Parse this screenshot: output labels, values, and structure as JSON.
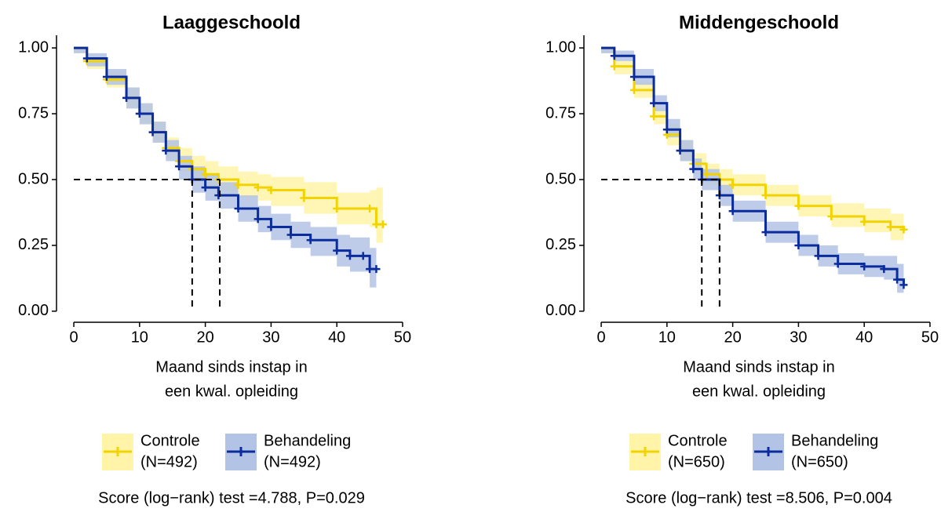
{
  "chart_data": [
    {
      "type": "step",
      "title": "Laaggeschoold",
      "xlabel": [
        "Maand sinds instap in",
        "een kwal. opleiding"
      ],
      "annotation": "Score (log−rank) test =4.788, P=0.029",
      "xlim": [
        -2.63,
        50.48
      ],
      "ylim": [
        -0.042,
        1.048
      ],
      "xticks": [
        0,
        10,
        20,
        30,
        40,
        50
      ],
      "yticks": [
        {
          "value": 0,
          "label": "0.00"
        },
        {
          "value": 0.25,
          "label": "0.25"
        },
        {
          "value": 0.5,
          "label": "0.50"
        },
        {
          "value": 0.75,
          "label": "0.75"
        },
        {
          "value": 1,
          "label": "1.00"
        }
      ],
      "series": [
        {
          "name": "Controle",
          "n_label": "(N=492)",
          "color": "#F2D300",
          "fill": "#FFF4A8",
          "median": 22.2,
          "x": [
            0,
            2,
            5,
            8,
            10,
            12,
            14,
            16,
            18,
            20,
            22,
            25,
            28,
            30,
            35,
            40,
            45,
            46,
            47
          ],
          "values": [
            1.0,
            0.95,
            0.88,
            0.81,
            0.75,
            0.68,
            0.62,
            0.57,
            0.54,
            0.52,
            0.5,
            0.48,
            0.47,
            0.46,
            0.43,
            0.39,
            0.39,
            0.33,
            0.33
          ],
          "lower": [
            0.98,
            0.92,
            0.85,
            0.77,
            0.71,
            0.64,
            0.58,
            0.53,
            0.5,
            0.47,
            0.45,
            0.43,
            0.42,
            0.4,
            0.37,
            0.33,
            0.32,
            0.26,
            0.26
          ],
          "upper": [
            1.0,
            0.97,
            0.91,
            0.85,
            0.79,
            0.72,
            0.66,
            0.62,
            0.59,
            0.57,
            0.55,
            0.53,
            0.52,
            0.51,
            0.49,
            0.45,
            0.46,
            0.47,
            0.47
          ]
        },
        {
          "name": "Behandeling",
          "n_label": "(N=492)",
          "color": "#0B2C9C",
          "fill": "#B3C3E5",
          "median": 18,
          "x": [
            0,
            2,
            5,
            8,
            10,
            12,
            14,
            16,
            18,
            20,
            22,
            25,
            28,
            30,
            33,
            36,
            40,
            42,
            44,
            45,
            46
          ],
          "values": [
            1.0,
            0.96,
            0.89,
            0.81,
            0.75,
            0.68,
            0.61,
            0.55,
            0.5,
            0.47,
            0.44,
            0.39,
            0.35,
            0.32,
            0.29,
            0.27,
            0.23,
            0.21,
            0.21,
            0.16,
            0.16
          ],
          "lower": [
            0.98,
            0.93,
            0.86,
            0.77,
            0.71,
            0.64,
            0.57,
            0.5,
            0.45,
            0.42,
            0.39,
            0.34,
            0.3,
            0.27,
            0.24,
            0.21,
            0.17,
            0.15,
            0.15,
            0.09,
            0.09
          ],
          "upper": [
            1.0,
            0.98,
            0.92,
            0.85,
            0.79,
            0.72,
            0.65,
            0.59,
            0.55,
            0.52,
            0.49,
            0.44,
            0.4,
            0.37,
            0.34,
            0.32,
            0.29,
            0.28,
            0.28,
            0.24,
            0.24
          ]
        }
      ]
    },
    {
      "type": "step",
      "title": "Middengeschoold",
      "xlabel": [
        "Maand sinds instap in",
        "een kwal. opleiding"
      ],
      "annotation": "Score (log−rank) test =8.506, P=0.004",
      "xlim": [
        -2.63,
        50.48
      ],
      "ylim": [
        -0.042,
        1.048
      ],
      "xticks": [
        0,
        10,
        20,
        30,
        40,
        50
      ],
      "yticks": [
        {
          "value": 0,
          "label": "0.00"
        },
        {
          "value": 0.25,
          "label": "0.25"
        },
        {
          "value": 0.5,
          "label": "0.50"
        },
        {
          "value": 0.75,
          "label": "0.75"
        },
        {
          "value": 1,
          "label": "1.00"
        }
      ],
      "series": [
        {
          "name": "Controle",
          "n_label": "(N=650)",
          "color": "#F2D300",
          "fill": "#FFF4A8",
          "median": 18,
          "x": [
            0,
            2,
            5,
            8,
            10,
            12,
            14,
            16,
            18,
            20,
            25,
            30,
            35,
            40,
            44,
            46
          ],
          "values": [
            1.0,
            0.93,
            0.84,
            0.74,
            0.67,
            0.61,
            0.56,
            0.52,
            0.5,
            0.48,
            0.44,
            0.4,
            0.36,
            0.34,
            0.32,
            0.31
          ],
          "lower": [
            0.98,
            0.9,
            0.81,
            0.71,
            0.63,
            0.57,
            0.52,
            0.48,
            0.46,
            0.44,
            0.4,
            0.36,
            0.32,
            0.3,
            0.27,
            0.26
          ],
          "upper": [
            1.0,
            0.95,
            0.87,
            0.77,
            0.71,
            0.65,
            0.6,
            0.56,
            0.54,
            0.52,
            0.48,
            0.44,
            0.41,
            0.39,
            0.37,
            0.37
          ]
        },
        {
          "name": "Behandeling",
          "n_label": "(N=650)",
          "color": "#0B2C9C",
          "fill": "#B3C3E5",
          "median": 15.3,
          "x": [
            0,
            2,
            5,
            8,
            10,
            12,
            14,
            15.3,
            18,
            20,
            25,
            30,
            33,
            36,
            40,
            43,
            45,
            46
          ],
          "values": [
            1.0,
            0.97,
            0.89,
            0.79,
            0.69,
            0.61,
            0.54,
            0.5,
            0.44,
            0.38,
            0.3,
            0.25,
            0.21,
            0.18,
            0.17,
            0.16,
            0.12,
            0.1
          ],
          "lower": [
            0.98,
            0.95,
            0.86,
            0.76,
            0.66,
            0.57,
            0.5,
            0.46,
            0.4,
            0.34,
            0.26,
            0.21,
            0.17,
            0.14,
            0.13,
            0.12,
            0.07,
            0.05
          ],
          "upper": [
            1.0,
            0.99,
            0.92,
            0.82,
            0.73,
            0.65,
            0.58,
            0.54,
            0.48,
            0.42,
            0.34,
            0.29,
            0.25,
            0.22,
            0.21,
            0.21,
            0.18,
            0.16
          ]
        }
      ]
    }
  ]
}
